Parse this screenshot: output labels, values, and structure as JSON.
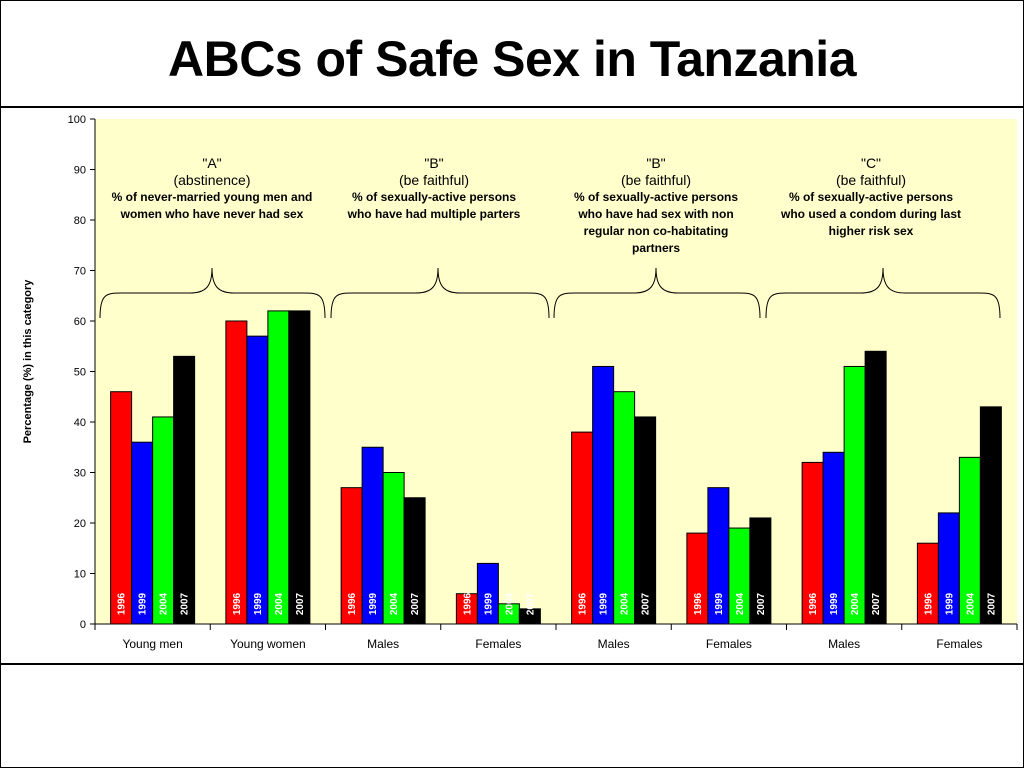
{
  "title": "ABCs of Safe Sex in Tanzania",
  "chart_data": {
    "type": "bar",
    "title": "ABCs of Safe Sex in Tanzania",
    "ylabel": "Percentage (%) in this category",
    "xlabel": "",
    "ylim": [
      0,
      100
    ],
    "yticks": [
      0,
      10,
      20,
      30,
      40,
      50,
      60,
      70,
      80,
      90,
      100
    ],
    "grid": false,
    "categories": [
      "Young men",
      "Young women",
      "Males",
      "Females",
      "Males",
      "Females",
      "Males",
      "Females"
    ],
    "bar_labels": [
      "1996",
      "1999",
      "2004",
      "2007"
    ],
    "series": [
      {
        "name": "1996",
        "color": "#ff0000",
        "values": [
          46,
          60,
          27,
          6,
          38,
          18,
          32,
          16
        ]
      },
      {
        "name": "1999",
        "color": "#0000ff",
        "values": [
          36,
          57,
          35,
          12,
          51,
          27,
          34,
          22
        ]
      },
      {
        "name": "2004",
        "color": "#00ff00",
        "values": [
          41,
          62,
          30,
          4,
          46,
          19,
          51,
          33
        ]
      },
      {
        "name": "2007",
        "color": "#000000",
        "values": [
          53,
          62,
          25,
          3,
          41,
          21,
          54,
          43
        ]
      }
    ],
    "annotations": [
      {
        "letter": "\"A\"",
        "label": "(abstinence)",
        "desc": [
          "% of never-married young men and",
          "women who have never had sex"
        ]
      },
      {
        "letter": "\"B\"",
        "label": "(be faithful)",
        "desc": [
          "% of sexually-active persons",
          "who have had multiple parters"
        ]
      },
      {
        "letter": "\"B\"",
        "label": "(be faithful)",
        "desc": [
          "% of sexually-active persons",
          "who have had sex with non",
          "regular non co-habitating",
          "partners"
        ]
      },
      {
        "letter": "\"C\"",
        "label": "(be faithful)",
        "desc": [
          "% of sexually-active persons",
          "who used a condom during last",
          "higher risk sex"
        ]
      }
    ],
    "colors": {
      "plot_bg": "#ffffcc",
      "bar_outline": "#000000"
    }
  }
}
